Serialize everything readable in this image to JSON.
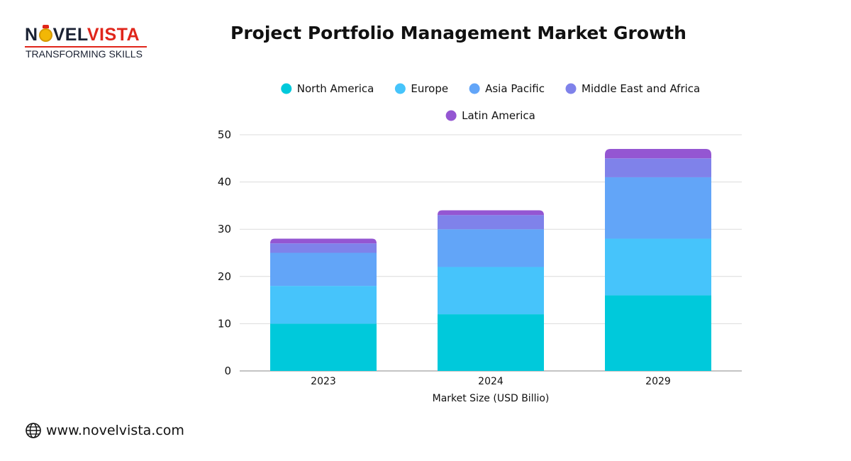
{
  "logo": {
    "brand_a": "N",
    "brand_b": "VEL",
    "brand_c": "VISTA",
    "tagline": "TRANSFORMING SKILLS"
  },
  "footer": {
    "url": "www.novelvista.com",
    "icon": "globe-icon"
  },
  "chart_data": {
    "type": "bar",
    "stacked": true,
    "title": "Project Portfolio Management Market Growth",
    "xlabel": "Market Size (USD Billio)",
    "ylabel": "",
    "ylim": [
      0,
      50
    ],
    "yticks": [
      0,
      10,
      20,
      30,
      40,
      50
    ],
    "grid": true,
    "legend_position": "top",
    "categories": [
      "2023",
      "2024",
      "2029"
    ],
    "series": [
      {
        "name": "North America",
        "color": "#00c9db",
        "values": [
          10,
          12,
          16
        ]
      },
      {
        "name": "Europe",
        "color": "#46c4fb",
        "values": [
          8,
          10,
          12
        ]
      },
      {
        "name": "Asia Pacific",
        "color": "#62a5f8",
        "values": [
          7,
          8,
          13
        ]
      },
      {
        "name": "Middle East and Africa",
        "color": "#7f82ea",
        "values": [
          2,
          3,
          4
        ]
      },
      {
        "name": "Latin America",
        "color": "#9456d2",
        "values": [
          1,
          1,
          2
        ]
      }
    ]
  }
}
